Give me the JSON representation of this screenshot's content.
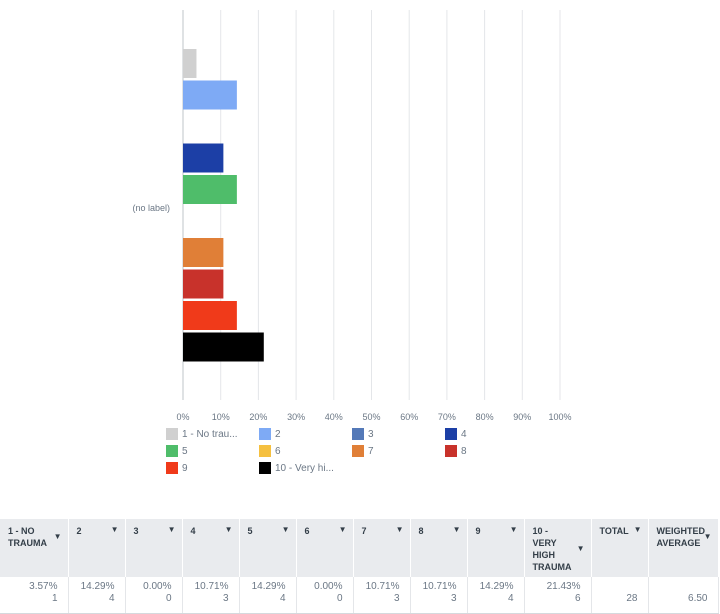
{
  "chart_data": {
    "type": "bar",
    "orientation": "horizontal",
    "categories": [
      "(no label)"
    ],
    "series": [
      {
        "name": "1 - No trauma",
        "legend_label": "1 - No trau...",
        "values": [
          3.57
        ],
        "color": "#d0d0d0"
      },
      {
        "name": "2",
        "legend_label": "2",
        "values": [
          14.29
        ],
        "color": "#7eaaf5"
      },
      {
        "name": "3",
        "legend_label": "3",
        "values": [
          0.0
        ],
        "color": "#5479b8"
      },
      {
        "name": "4",
        "legend_label": "4",
        "values": [
          10.71
        ],
        "color": "#1c3fa6"
      },
      {
        "name": "5",
        "legend_label": "5",
        "values": [
          14.29
        ],
        "color": "#4fbd6a"
      },
      {
        "name": "6",
        "legend_label": "6",
        "values": [
          0.0
        ],
        "color": "#f5c040"
      },
      {
        "name": "7",
        "legend_label": "7",
        "values": [
          10.71
        ],
        "color": "#e07f37"
      },
      {
        "name": "8",
        "legend_label": "8",
        "values": [
          10.71
        ],
        "color": "#c8322b"
      },
      {
        "name": "9",
        "legend_label": "9",
        "values": [
          14.29
        ],
        "color": "#f03a1a"
      },
      {
        "name": "10 - Very high trauma",
        "legend_label": "10 - Very hi...",
        "values": [
          21.43
        ],
        "color": "#000000"
      }
    ],
    "xlim": [
      0,
      100
    ],
    "x_ticks": [
      "0%",
      "10%",
      "20%",
      "30%",
      "40%",
      "50%",
      "60%",
      "70%",
      "80%",
      "90%",
      "100%"
    ],
    "title": "",
    "xlabel": "",
    "ylabel": "",
    "grid": true,
    "legend_position": "bottom"
  },
  "table": {
    "columns": [
      {
        "label": "1 - No trauma",
        "pct": "3.57%",
        "count": "1"
      },
      {
        "label": "2",
        "pct": "14.29%",
        "count": "4"
      },
      {
        "label": "3",
        "pct": "0.00%",
        "count": "0"
      },
      {
        "label": "4",
        "pct": "10.71%",
        "count": "3"
      },
      {
        "label": "5",
        "pct": "14.29%",
        "count": "4"
      },
      {
        "label": "6",
        "pct": "0.00%",
        "count": "0"
      },
      {
        "label": "7",
        "pct": "10.71%",
        "count": "3"
      },
      {
        "label": "8",
        "pct": "10.71%",
        "count": "3"
      },
      {
        "label": "9",
        "pct": "14.29%",
        "count": "4"
      },
      {
        "label": "10 - Very high trauma",
        "pct": "21.43%",
        "count": "6"
      }
    ],
    "total_label": "Total",
    "total_value": "28",
    "average_label": "Weighted average",
    "average_value": "6.50"
  }
}
